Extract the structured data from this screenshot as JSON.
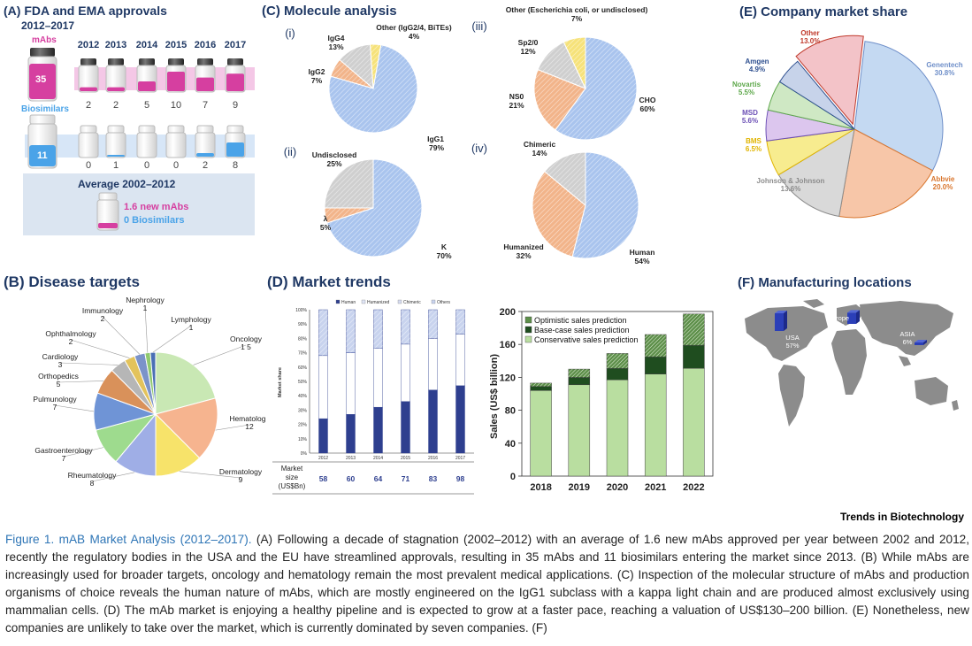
{
  "panelA": {
    "title": "(A) FDA and EMA approvals",
    "subtitle": "2012–2017",
    "mabs_label": "mAbs",
    "mabs_total": "35",
    "biosim_label": "Biosimilars",
    "biosim_total": "11",
    "years": [
      "2012",
      "2013",
      "2014",
      "2015",
      "2016",
      "2017"
    ],
    "mabs_counts": [
      2,
      2,
      5,
      10,
      7,
      9
    ],
    "biosim_counts": [
      0,
      1,
      0,
      0,
      2,
      8
    ],
    "avg_title": "Average 2002–2012",
    "avg_mabs": "1.6 new mAbs",
    "avg_biosim": "0 Biosimilars",
    "colors": {
      "mabs": "#d63fa0",
      "biosim": "#4aa3e8",
      "band_mabs": "#f4c7e6",
      "band_biosim": "#d7e6f7",
      "avg_box": "#dbe5f1"
    }
  },
  "panelB": {
    "title": "(B) Disease targets",
    "chart_data": {
      "type": "pie",
      "slices": [
        {
          "label": "Oncology",
          "value": "1 5",
          "num": 15,
          "color": "#c9e8b4"
        },
        {
          "label": "Hematology",
          "value": "12",
          "num": 12,
          "color": "#f6b48f"
        },
        {
          "label": "Dermatology",
          "value": "9",
          "num": 9,
          "color": "#f7e36a"
        },
        {
          "label": "Rheumatology",
          "value": "8",
          "num": 8,
          "color": "#9faee6"
        },
        {
          "label": "Gastroenterology",
          "value": "7",
          "num": 7,
          "color": "#9edb8e"
        },
        {
          "label": "Pulmunology",
          "value": "7",
          "num": 7,
          "color": "#6f94d6"
        },
        {
          "label": "Orthopedics",
          "value": "5",
          "num": 5,
          "color": "#d9915a"
        },
        {
          "label": "Cardiology",
          "value": "3",
          "num": 3,
          "color": "#b6b6b6"
        },
        {
          "label": "Ophthalmology",
          "value": "2",
          "num": 2,
          "color": "#e3c35c"
        },
        {
          "label": "Immunology",
          "value": "2",
          "num": 2,
          "color": "#7b93c9"
        },
        {
          "label": "Nephrology",
          "value": "1",
          "num": 1,
          "color": "#8fc96e"
        },
        {
          "label": "Lymphology",
          "value": "1",
          "num": 1,
          "color": "#4a6fb5"
        }
      ]
    }
  },
  "panelC": {
    "title": "(C) Molecule analysis",
    "chart_data": [
      {
        "type": "pie",
        "id": "(i)",
        "slices": [
          {
            "label": "IgG1",
            "value": "79%",
            "num": 79,
            "color": "#a9c4ee"
          },
          {
            "label": "IgG2",
            "value": "7%",
            "num": 7,
            "color": "#f2b48a"
          },
          {
            "label": "IgG4",
            "value": "13%",
            "num": 13,
            "color": "#cfcfcf"
          },
          {
            "label": "Other (IgG2/4, BiTEs)",
            "value": "4%",
            "num": 4,
            "color": "#f6e27a"
          }
        ]
      },
      {
        "type": "pie",
        "id": "(ii)",
        "slices": [
          {
            "label": "K",
            "value": "70%",
            "num": 70,
            "color": "#a9c4ee"
          },
          {
            "label": "λ",
            "value": "5%",
            "num": 5,
            "color": "#f2b48a"
          },
          {
            "label": "Undisclosed",
            "value": "25%",
            "num": 25,
            "color": "#cfcfcf"
          }
        ]
      },
      {
        "type": "pie",
        "id": "(iii)",
        "slices": [
          {
            "label": "CHO",
            "value": "60%",
            "num": 60,
            "color": "#a9c4ee"
          },
          {
            "label": "NS0",
            "value": "21%",
            "num": 21,
            "color": "#f2b48a"
          },
          {
            "label": "Sp2/0",
            "value": "12%",
            "num": 12,
            "color": "#cfcfcf"
          },
          {
            "label": "Other (Escherichia coli, or undisclosed)",
            "value": "7%",
            "num": 7,
            "color": "#f6e27a"
          }
        ]
      },
      {
        "type": "pie",
        "id": "(iv)",
        "slices": [
          {
            "label": "Human",
            "value": "54%",
            "num": 54,
            "color": "#a9c4ee"
          },
          {
            "label": "Humanized",
            "value": "32%",
            "num": 32,
            "color": "#f2b48a"
          },
          {
            "label": "Chimeric",
            "value": "14%",
            "num": 14,
            "color": "#cfcfcf"
          }
        ]
      }
    ]
  },
  "panelD": {
    "title": "(D) Market trends",
    "chart_data": [
      {
        "type": "bar",
        "stacked": true,
        "ylabel": "Market share",
        "categories": [
          "2012",
          "2013",
          "2014",
          "2015",
          "2016",
          "2017"
        ],
        "yticks": [
          "0%",
          "10%",
          "20%",
          "30%",
          "40%",
          "50%",
          "60%",
          "70%",
          "80%",
          "90%",
          "100%"
        ],
        "series": [
          {
            "name": "Human",
            "values": [
              24,
              27,
              32,
              36,
              44,
              47
            ],
            "color": "#2e3f8f"
          },
          {
            "name": "Humanized",
            "values": [
              44,
              43,
              41,
              40,
              36,
              36
            ],
            "color": "#ffffff"
          },
          {
            "name": "Chimeric",
            "values": [
              0,
              0,
              0,
              0,
              0,
              0
            ],
            "color": "#d6dcf0"
          },
          {
            "name": "Others",
            "values": [
              32,
              30,
              27,
              24,
              20,
              17
            ],
            "color": "#c8d3ee"
          }
        ],
        "market_size_label": "Market size (US$Bn)",
        "market_size": [
          "58",
          "60",
          "64",
          "71",
          "83",
          "98"
        ]
      },
      {
        "type": "bar",
        "stacked": true,
        "ylabel": "Sales (US$ billion)",
        "ylim": [
          0,
          200
        ],
        "yticks": [
          "0",
          "40",
          "80",
          "120",
          "160",
          "200"
        ],
        "categories": [
          "2018",
          "2019",
          "2020",
          "2021",
          "2022"
        ],
        "series": [
          {
            "name": "Conservative sales prediction",
            "values": [
              104,
              111,
              117,
              124,
              131
            ],
            "color": "#b9dea0"
          },
          {
            "name": "Base-case sales prediction",
            "values": [
              5,
              9,
              14,
              21,
              28
            ],
            "color": "#1f4d1f"
          },
          {
            "name": "Optimistic sales prediction",
            "values": [
              4,
              10,
              18,
              27,
              38
            ],
            "color": "#5d8f4a"
          }
        ]
      }
    ]
  },
  "panelE": {
    "title": "(E) Company market share",
    "chart_data": {
      "type": "pie",
      "slices": [
        {
          "label": "Genentech",
          "value": "30.8%",
          "num": 30.8,
          "color": "#c4d9f2",
          "tcolor": "#6f8fc9"
        },
        {
          "label": "Abbvie",
          "value": "20.0%",
          "num": 20.0,
          "color": "#f7c6a8",
          "tcolor": "#d9762e"
        },
        {
          "label": "Johnson & Johnson",
          "value": "13.6%",
          "num": 13.6,
          "color": "#d9d9d9",
          "tcolor": "#8c8c8c"
        },
        {
          "label": "BMS",
          "value": "6.5%",
          "num": 6.5,
          "color": "#f7ec8f",
          "tcolor": "#e0b400"
        },
        {
          "label": "MSD",
          "value": "5.6%",
          "num": 5.6,
          "color": "#dcc6ee",
          "tcolor": "#6b4fb5"
        },
        {
          "label": "Novartis",
          "value": "5.5%",
          "num": 5.5,
          "color": "#cfe8c4",
          "tcolor": "#5ea84b"
        },
        {
          "label": "Amgen",
          "value": "4.9%",
          "num": 4.9,
          "color": "#c7d3ea",
          "tcolor": "#2e4f8f"
        },
        {
          "label": "Other",
          "value": "13.0%",
          "num": 13.0,
          "color": "#f3c3c8",
          "tcolor": "#c0392b"
        }
      ]
    }
  },
  "panelF": {
    "title": "(F) Manufacturing locations",
    "chart_data": {
      "type": "bar",
      "categories": [
        "USA",
        "Europe",
        "ASIA"
      ],
      "values": [
        "57%",
        "36%",
        "6%"
      ],
      "nums": [
        57,
        36,
        6
      ],
      "color": "#2b3fb8"
    }
  },
  "brand": "Trends in Biotechnology",
  "caption": {
    "title": "Figure 1. mAB Market Analysis (2012–2017).",
    "body": " (A) Following a decade of stagnation (2002–2012) with an average of 1.6 new mAbs approved per year between 2002 and 2012, recently the regulatory bodies in the USA and the EU have streamlined approvals, resulting in 35 mAbs and 11 biosimilars entering the market since 2013. (B) While mAbs are increasingly used for broader targets, oncology and hematology remain the most prevalent medical applications. (C) Inspection of the molecular structure of mAbs and production organisms of choice reveals the human nature of mAbs, which are mostly engineered on the IgG1 subclass with a kappa light chain and are produced almost exclusively using mammalian cells. (D) The mAb market is enjoying a healthy pipeline and is expected to grow at a faster pace, reaching a valuation of US$130–200 billion. (E) Nonetheless, new companies are unlikely to take over the market, which is currently dominated by seven companies. (F)"
  }
}
